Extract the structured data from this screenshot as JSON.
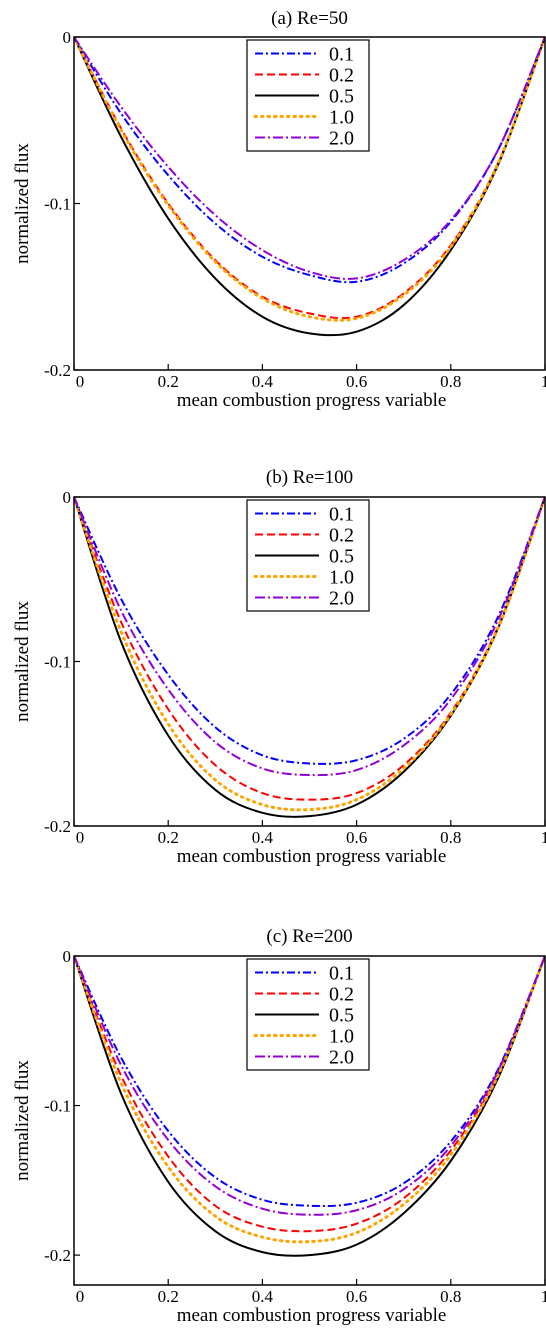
{
  "chart_data": [
    {
      "type": "line",
      "title": "(a) Re=50",
      "xlabel": "mean combustion progress variable",
      "ylabel": "normalized flux",
      "xlim": [
        0,
        1
      ],
      "ylim": [
        -0.2,
        0
      ],
      "xticks": [
        "0",
        "0.2",
        "0.4",
        "0.6",
        "0.8",
        "1"
      ],
      "yticks": [
        "0",
        "-0.1",
        "-0.2"
      ],
      "grid": false,
      "legend_position": "top-center",
      "series": [
        {
          "name": "0.1",
          "color": "#0000ff",
          "dash": "dashdot",
          "x": [
            0,
            0.1,
            0.2,
            0.3,
            0.4,
            0.5,
            0.6,
            0.7,
            0.8,
            0.9,
            1
          ],
          "y": [
            0,
            -0.046,
            -0.083,
            -0.112,
            -0.132,
            -0.143,
            -0.147,
            -0.136,
            -0.111,
            -0.068,
            0
          ]
        },
        {
          "name": "0.2",
          "color": "#ff0000",
          "dash": "dashed",
          "x": [
            0,
            0.1,
            0.2,
            0.3,
            0.4,
            0.5,
            0.6,
            0.7,
            0.8,
            0.9,
            1
          ],
          "y": [
            0,
            -0.055,
            -0.1,
            -0.134,
            -0.156,
            -0.166,
            -0.168,
            -0.154,
            -0.125,
            -0.076,
            0
          ]
        },
        {
          "name": "0.5",
          "color": "#000000",
          "dash": "solid",
          "x": [
            0,
            0.1,
            0.2,
            0.3,
            0.4,
            0.5,
            0.6,
            0.7,
            0.8,
            0.9,
            1
          ],
          "y": [
            0,
            -0.06,
            -0.109,
            -0.145,
            -0.168,
            -0.178,
            -0.177,
            -0.161,
            -0.128,
            -0.077,
            0
          ]
        },
        {
          "name": "1.0",
          "color": "#ffa500",
          "dash": "dotted",
          "x": [
            0,
            0.1,
            0.2,
            0.3,
            0.4,
            0.5,
            0.6,
            0.7,
            0.8,
            0.9,
            1
          ],
          "y": [
            0,
            -0.056,
            -0.101,
            -0.135,
            -0.157,
            -0.168,
            -0.169,
            -0.155,
            -0.126,
            -0.076,
            0
          ]
        },
        {
          "name": "2.0",
          "color": "#9400d3",
          "dash": "dashdot2",
          "x": [
            0,
            0.1,
            0.2,
            0.3,
            0.4,
            0.5,
            0.6,
            0.7,
            0.8,
            0.9,
            1
          ],
          "y": [
            0,
            -0.042,
            -0.078,
            -0.107,
            -0.128,
            -0.141,
            -0.145,
            -0.134,
            -0.11,
            -0.068,
            0
          ]
        }
      ]
    },
    {
      "type": "line",
      "title": "(b) Re=100",
      "xlabel": "mean combustion progress variable",
      "ylabel": "normalized flux",
      "xlim": [
        0,
        1
      ],
      "ylim": [
        -0.2,
        0
      ],
      "xticks": [
        "0",
        "0.2",
        "0.4",
        "0.6",
        "0.8",
        "1"
      ],
      "yticks": [
        "0",
        "-0.1",
        "-0.2"
      ],
      "grid": false,
      "legend_position": "top-center",
      "series": [
        {
          "name": "0.1",
          "color": "#0000ff",
          "dash": "dashdot",
          "x": [
            0,
            0.1,
            0.2,
            0.3,
            0.4,
            0.5,
            0.6,
            0.7,
            0.8,
            0.9,
            1
          ],
          "y": [
            0,
            -0.062,
            -0.108,
            -0.14,
            -0.157,
            -0.162,
            -0.16,
            -0.147,
            -0.12,
            -0.073,
            0
          ]
        },
        {
          "name": "0.2",
          "color": "#ff0000",
          "dash": "dashed",
          "x": [
            0,
            0.1,
            0.2,
            0.3,
            0.4,
            0.5,
            0.6,
            0.7,
            0.8,
            0.9,
            1
          ],
          "y": [
            0,
            -0.076,
            -0.129,
            -0.163,
            -0.18,
            -0.184,
            -0.18,
            -0.163,
            -0.131,
            -0.079,
            0
          ]
        },
        {
          "name": "0.5",
          "color": "#000000",
          "dash": "solid",
          "x": [
            0,
            0.1,
            0.2,
            0.3,
            0.4,
            0.5,
            0.6,
            0.7,
            0.8,
            0.9,
            1
          ],
          "y": [
            0,
            -0.088,
            -0.145,
            -0.178,
            -0.192,
            -0.194,
            -0.187,
            -0.167,
            -0.133,
            -0.08,
            0
          ]
        },
        {
          "name": "1.0",
          "color": "#ffa500",
          "dash": "dotted",
          "x": [
            0,
            0.1,
            0.2,
            0.3,
            0.4,
            0.5,
            0.6,
            0.7,
            0.8,
            0.9,
            1
          ],
          "y": [
            0,
            -0.082,
            -0.138,
            -0.172,
            -0.187,
            -0.19,
            -0.184,
            -0.165,
            -0.132,
            -0.08,
            0
          ]
        },
        {
          "name": "2.0",
          "color": "#9400d3",
          "dash": "dashdot2",
          "x": [
            0,
            0.1,
            0.2,
            0.3,
            0.4,
            0.5,
            0.6,
            0.7,
            0.8,
            0.9,
            1
          ],
          "y": [
            0,
            -0.069,
            -0.117,
            -0.149,
            -0.165,
            -0.169,
            -0.166,
            -0.151,
            -0.123,
            -0.075,
            0
          ]
        }
      ]
    },
    {
      "type": "line",
      "title": "(c) Re=200",
      "xlabel": "mean combustion progress variable",
      "ylabel": "normalized flux",
      "xlim": [
        0,
        1
      ],
      "ylim": [
        -0.22,
        0
      ],
      "xticks": [
        "0",
        "0.2",
        "0.4",
        "0.6",
        "0.8",
        "1"
      ],
      "yticks": [
        "0",
        "-0.1",
        "-0.2"
      ],
      "grid": false,
      "legend_position": "top-center",
      "series": [
        {
          "name": "0.1",
          "color": "#0000ff",
          "dash": "dashdot",
          "x": [
            0,
            0.1,
            0.2,
            0.3,
            0.4,
            0.5,
            0.6,
            0.7,
            0.8,
            0.9,
            1
          ],
          "y": [
            0,
            -0.068,
            -0.117,
            -0.148,
            -0.163,
            -0.167,
            -0.165,
            -0.152,
            -0.124,
            -0.076,
            0
          ]
        },
        {
          "name": "0.2",
          "color": "#ff0000",
          "dash": "dashed",
          "x": [
            0,
            0.1,
            0.2,
            0.3,
            0.4,
            0.5,
            0.6,
            0.7,
            0.8,
            0.9,
            1
          ],
          "y": [
            0,
            -0.08,
            -0.134,
            -0.167,
            -0.181,
            -0.184,
            -0.179,
            -0.162,
            -0.13,
            -0.079,
            0
          ]
        },
        {
          "name": "0.5",
          "color": "#000000",
          "dash": "solid",
          "x": [
            0,
            0.1,
            0.2,
            0.3,
            0.4,
            0.5,
            0.6,
            0.7,
            0.8,
            0.9,
            1
          ],
          "y": [
            0,
            -0.092,
            -0.151,
            -0.184,
            -0.198,
            -0.2,
            -0.193,
            -0.172,
            -0.137,
            -0.082,
            0
          ]
        },
        {
          "name": "1.0",
          "color": "#ffa500",
          "dash": "dotted",
          "x": [
            0,
            0.1,
            0.2,
            0.3,
            0.4,
            0.5,
            0.6,
            0.7,
            0.8,
            0.9,
            1
          ],
          "y": [
            0,
            -0.085,
            -0.141,
            -0.174,
            -0.188,
            -0.191,
            -0.185,
            -0.166,
            -0.133,
            -0.08,
            0
          ]
        },
        {
          "name": "2.0",
          "color": "#9400d3",
          "dash": "dashdot2",
          "x": [
            0,
            0.1,
            0.2,
            0.3,
            0.4,
            0.5,
            0.6,
            0.7,
            0.8,
            0.9,
            1
          ],
          "y": [
            0,
            -0.073,
            -0.123,
            -0.154,
            -0.169,
            -0.173,
            -0.17,
            -0.156,
            -0.127,
            -0.077,
            0
          ]
        }
      ]
    }
  ]
}
